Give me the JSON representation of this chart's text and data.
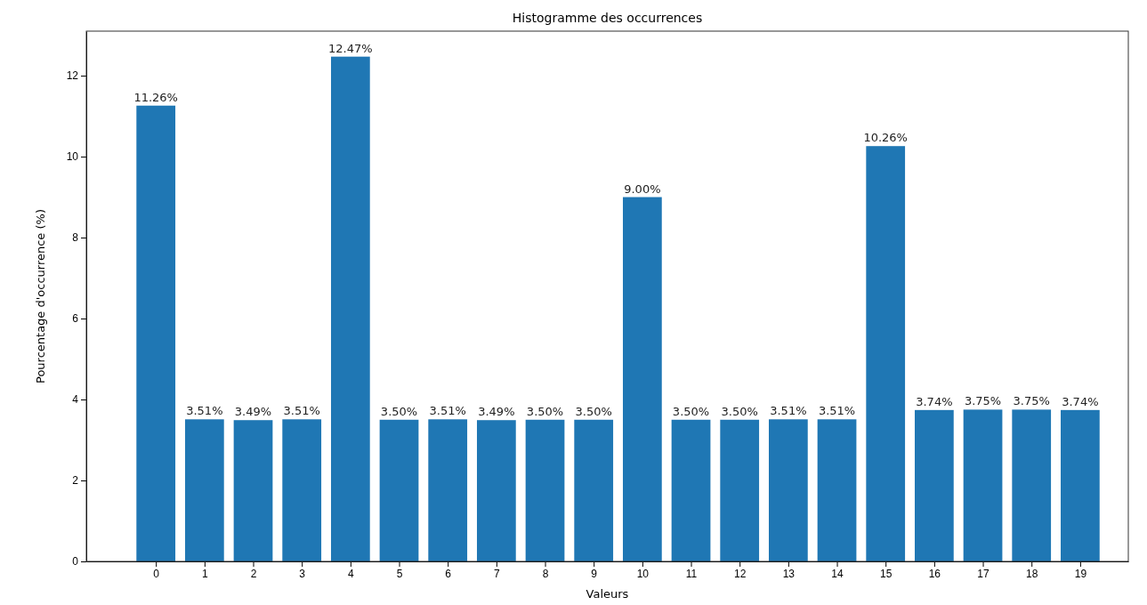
{
  "chart_data": {
    "type": "bar",
    "title": "Histogramme des occurrences",
    "xlabel": "Valeurs",
    "ylabel": "Pourcentage d'occurrence (%)",
    "categories": [
      "0",
      "1",
      "2",
      "3",
      "4",
      "5",
      "6",
      "7",
      "8",
      "9",
      "10",
      "11",
      "12",
      "13",
      "14",
      "15",
      "16",
      "17",
      "18",
      "19"
    ],
    "values": [
      11.26,
      3.51,
      3.49,
      3.51,
      12.47,
      3.5,
      3.51,
      3.49,
      3.5,
      3.5,
      9.0,
      3.5,
      3.5,
      3.51,
      3.51,
      10.26,
      3.74,
      3.75,
      3.75,
      3.74
    ],
    "value_labels": [
      "11.26%",
      "3.51%",
      "3.49%",
      "3.51%",
      "12.47%",
      "3.50%",
      "3.51%",
      "3.49%",
      "3.50%",
      "3.50%",
      "9.00%",
      "3.50%",
      "3.50%",
      "3.51%",
      "3.51%",
      "10.26%",
      "3.74%",
      "3.75%",
      "3.75%",
      "3.74%"
    ],
    "color": "#1f77b4",
    "ylim": [
      0,
      13.1
    ],
    "yticks": [
      0,
      2,
      4,
      6,
      8,
      10,
      12
    ],
    "grid": false
  }
}
